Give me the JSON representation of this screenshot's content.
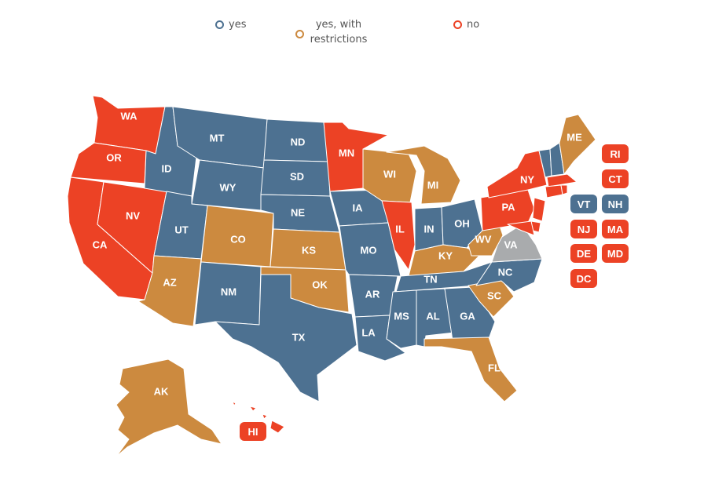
{
  "legend": [
    {
      "label": "yes",
      "color": "#4d7191"
    },
    {
      "label": "yes, with restrictions",
      "color": "#cc8a3f"
    },
    {
      "label": "no",
      "color": "#ec4225"
    }
  ],
  "colors": {
    "yes": "#4d7191",
    "restricted": "#cc8a3f",
    "no": "#ec4225",
    "unknown": "#a9abad"
  },
  "states": [
    {
      "abbr": "WA",
      "status": "no"
    },
    {
      "abbr": "OR",
      "status": "no"
    },
    {
      "abbr": "CA",
      "status": "no"
    },
    {
      "abbr": "NV",
      "status": "no"
    },
    {
      "abbr": "ID",
      "status": "yes"
    },
    {
      "abbr": "MT",
      "status": "yes"
    },
    {
      "abbr": "WY",
      "status": "yes"
    },
    {
      "abbr": "UT",
      "status": "yes"
    },
    {
      "abbr": "AZ",
      "status": "restricted"
    },
    {
      "abbr": "CO",
      "status": "restricted"
    },
    {
      "abbr": "NM",
      "status": "yes"
    },
    {
      "abbr": "ND",
      "status": "yes"
    },
    {
      "abbr": "SD",
      "status": "yes"
    },
    {
      "abbr": "NE",
      "status": "yes"
    },
    {
      "abbr": "KS",
      "status": "restricted"
    },
    {
      "abbr": "OK",
      "status": "restricted"
    },
    {
      "abbr": "TX",
      "status": "yes"
    },
    {
      "abbr": "MN",
      "status": "no"
    },
    {
      "abbr": "IA",
      "status": "yes"
    },
    {
      "abbr": "MO",
      "status": "yes"
    },
    {
      "abbr": "AR",
      "status": "yes"
    },
    {
      "abbr": "LA",
      "status": "yes"
    },
    {
      "abbr": "WI",
      "status": "restricted"
    },
    {
      "abbr": "IL",
      "status": "no"
    },
    {
      "abbr": "MI",
      "status": "restricted"
    },
    {
      "abbr": "IN",
      "status": "yes"
    },
    {
      "abbr": "OH",
      "status": "yes"
    },
    {
      "abbr": "KY",
      "status": "restricted"
    },
    {
      "abbr": "TN",
      "status": "yes"
    },
    {
      "abbr": "MS",
      "status": "yes"
    },
    {
      "abbr": "AL",
      "status": "yes"
    },
    {
      "abbr": "GA",
      "status": "yes"
    },
    {
      "abbr": "FL",
      "status": "restricted"
    },
    {
      "abbr": "SC",
      "status": "restricted"
    },
    {
      "abbr": "NC",
      "status": "yes"
    },
    {
      "abbr": "VA",
      "status": "unknown"
    },
    {
      "abbr": "WV",
      "status": "restricted"
    },
    {
      "abbr": "PA",
      "status": "no"
    },
    {
      "abbr": "NY",
      "status": "no"
    },
    {
      "abbr": "ME",
      "status": "restricted"
    },
    {
      "abbr": "AK",
      "status": "restricted"
    },
    {
      "abbr": "HI",
      "status": "no"
    }
  ],
  "small_states": [
    {
      "abbr": "RI",
      "status": "no"
    },
    {
      "abbr": "CT",
      "status": "no"
    },
    {
      "abbr": "VT",
      "status": "yes"
    },
    {
      "abbr": "NH",
      "status": "yes"
    },
    {
      "abbr": "NJ",
      "status": "no"
    },
    {
      "abbr": "MA",
      "status": "no"
    },
    {
      "abbr": "DE",
      "status": "no"
    },
    {
      "abbr": "MD",
      "status": "no"
    },
    {
      "abbr": "DC",
      "status": "no"
    }
  ]
}
